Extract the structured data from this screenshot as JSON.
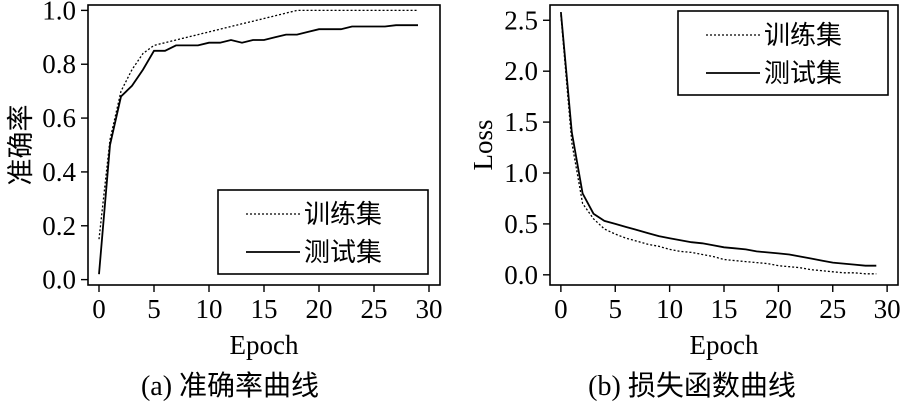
{
  "chart_data": [
    {
      "type": "line",
      "caption": "(a) 准确率曲线",
      "xlabel": "Epoch",
      "ylabel": "准确率",
      "xlim": [
        -1,
        31
      ],
      "ylim": [
        -0.02,
        1.02
      ],
      "xticks": [
        "0",
        "5",
        "10",
        "15",
        "20",
        "25",
        "30"
      ],
      "yticks": [
        "0.0",
        "0.2",
        "0.4",
        "0.6",
        "0.8",
        "1.0"
      ],
      "legend_position": "bottom-right",
      "x": [
        0,
        1,
        2,
        3,
        4,
        5,
        6,
        7,
        8,
        9,
        10,
        11,
        12,
        13,
        14,
        15,
        16,
        17,
        18,
        19,
        20,
        21,
        22,
        23,
        24,
        25,
        26,
        27,
        28,
        29
      ],
      "series": [
        {
          "name": "训练集",
          "style": "dotted",
          "values": [
            0.15,
            0.52,
            0.7,
            0.78,
            0.84,
            0.87,
            0.88,
            0.89,
            0.9,
            0.91,
            0.92,
            0.93,
            0.94,
            0.95,
            0.96,
            0.97,
            0.98,
            0.99,
            1.0,
            1.0,
            1.0,
            1.0,
            1.0,
            1.0,
            1.0,
            1.0,
            1.0,
            1.0,
            1.0,
            1.0
          ]
        },
        {
          "name": "测试集",
          "style": "solid",
          "values": [
            0.02,
            0.5,
            0.68,
            0.72,
            0.78,
            0.85,
            0.85,
            0.87,
            0.87,
            0.87,
            0.88,
            0.88,
            0.89,
            0.88,
            0.89,
            0.89,
            0.9,
            0.91,
            0.91,
            0.92,
            0.93,
            0.93,
            0.93,
            0.94,
            0.94,
            0.94,
            0.94,
            0.945,
            0.945,
            0.945
          ]
        }
      ]
    },
    {
      "type": "line",
      "caption": "(b) 损失函数曲线",
      "xlabel": "Epoch",
      "ylabel": "Loss",
      "xlim": [
        -1,
        31
      ],
      "ylim": [
        -0.1,
        2.65
      ],
      "xticks": [
        "0",
        "5",
        "10",
        "15",
        "20",
        "25",
        "30"
      ],
      "yticks": [
        "0.0",
        "0.5",
        "1.0",
        "1.5",
        "2.0",
        "2.5"
      ],
      "legend_position": "top-right",
      "x": [
        0,
        1,
        2,
        3,
        4,
        5,
        6,
        7,
        8,
        9,
        10,
        11,
        12,
        13,
        14,
        15,
        16,
        17,
        18,
        19,
        20,
        21,
        22,
        23,
        24,
        25,
        26,
        27,
        28,
        29
      ],
      "series": [
        {
          "name": "训练集",
          "style": "dotted",
          "values": [
            2.55,
            1.3,
            0.7,
            0.55,
            0.45,
            0.4,
            0.36,
            0.33,
            0.3,
            0.28,
            0.25,
            0.23,
            0.22,
            0.2,
            0.18,
            0.15,
            0.14,
            0.13,
            0.12,
            0.11,
            0.09,
            0.08,
            0.07,
            0.05,
            0.04,
            0.03,
            0.02,
            0.02,
            0.01,
            0.01
          ]
        },
        {
          "name": "测试集",
          "style": "solid",
          "values": [
            2.58,
            1.4,
            0.8,
            0.6,
            0.53,
            0.5,
            0.47,
            0.44,
            0.41,
            0.38,
            0.36,
            0.34,
            0.32,
            0.31,
            0.29,
            0.27,
            0.26,
            0.25,
            0.23,
            0.22,
            0.21,
            0.2,
            0.18,
            0.16,
            0.14,
            0.12,
            0.11,
            0.1,
            0.09,
            0.09
          ]
        }
      ]
    }
  ]
}
